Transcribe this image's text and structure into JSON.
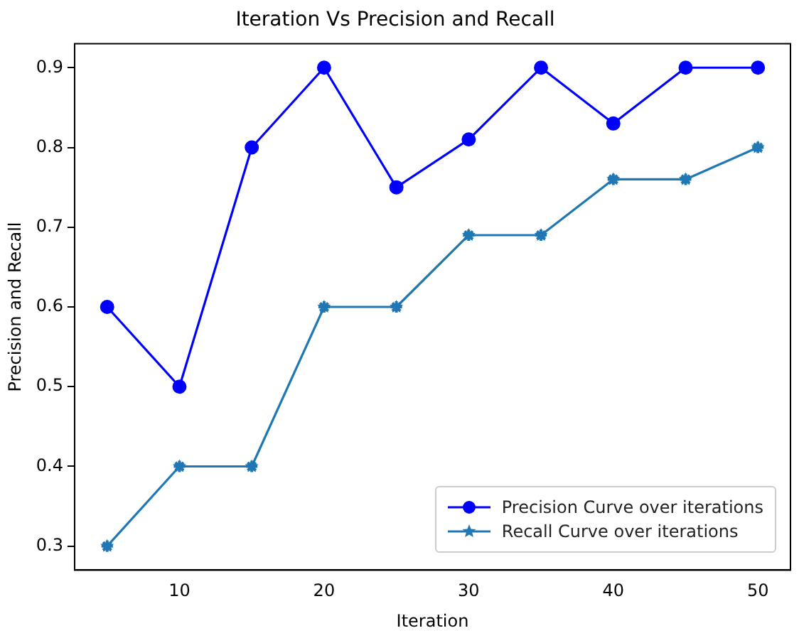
{
  "chart_data": {
    "type": "line",
    "title": "Iteration Vs Precision and Recall",
    "xlabel": "Iteration",
    "ylabel": "Precision and Recall",
    "x": [
      5,
      10,
      15,
      20,
      25,
      30,
      35,
      40,
      45,
      50
    ],
    "series": [
      {
        "name": "Precision Curve over iterations",
        "color": "#0000ff",
        "marker": "circle",
        "values": [
          0.6,
          0.5,
          0.8,
          0.9,
          0.75,
          0.81,
          0.9,
          0.83,
          0.9,
          0.9
        ]
      },
      {
        "name": "Recall Curve over iterations",
        "color": "#1f77b4",
        "marker": "star",
        "values": [
          0.3,
          0.4,
          0.4,
          0.6,
          0.6,
          0.69,
          0.69,
          0.76,
          0.76,
          0.8
        ]
      }
    ],
    "xlim": [
      2.75,
      52.25
    ],
    "xticks": [
      10,
      20,
      30,
      40,
      50
    ],
    "ylim": [
      0.27,
      0.93
    ],
    "yticks": [
      0.3,
      0.4,
      0.5,
      0.6,
      0.7,
      0.8,
      0.9
    ],
    "grid": false,
    "legend": "bottom right",
    "line_style": "solid"
  }
}
